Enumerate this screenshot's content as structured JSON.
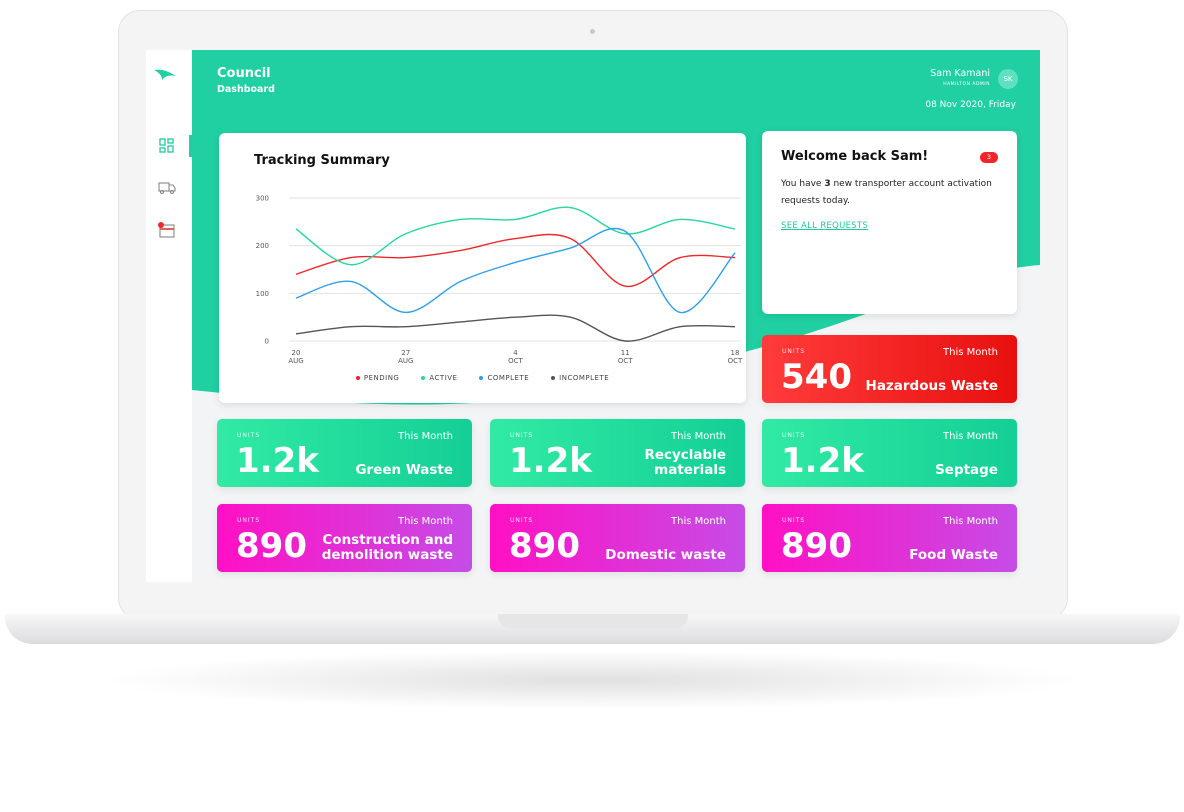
{
  "header": {
    "title": "Council",
    "subtitle": "Dashboard",
    "user_name": "Sam Kamani",
    "user_role": "HAMILTON ADMIN",
    "avatar": "SK",
    "date": "08 Nov 2020, Friday"
  },
  "chart_data": {
    "type": "line",
    "title": "Tracking Summary",
    "categories": [
      "20\nAUG",
      null,
      "27\nAUG",
      null,
      "4\nOCT",
      null,
      "11\nOCT",
      null,
      "18\nOCT"
    ],
    "series": [
      {
        "name": "PENDING",
        "color": "#f0262a",
        "values": [
          140,
          175,
          175,
          190,
          215,
          215,
          115,
          175,
          175
        ]
      },
      {
        "name": "ACTIVE",
        "color": "#27d6a0",
        "values": [
          235,
          160,
          225,
          255,
          255,
          280,
          225,
          255,
          235
        ]
      },
      {
        "name": "COMPLETE",
        "color": "#2f9fe8",
        "values": [
          90,
          125,
          60,
          125,
          165,
          195,
          230,
          60,
          185
        ]
      },
      {
        "name": "INCOMPLETE",
        "color": "#555555",
        "values": [
          15,
          30,
          30,
          40,
          50,
          50,
          0,
          30,
          30
        ]
      }
    ],
    "ylim": [
      0,
      300
    ],
    "yticks": [
      0,
      100,
      200,
      300
    ],
    "grid": true,
    "legend": "bottom"
  },
  "welcome": {
    "title": "Welcome back Sam!",
    "badge": "3",
    "message": [
      "You have ",
      "3",
      " new transporter account activation requests today."
    ],
    "link": "SEE ALL REQUESTS"
  },
  "cards": [
    {
      "units": "UNITS",
      "period": "This Month",
      "value": "540",
      "name": "Hazardous Waste"
    },
    {
      "units": "UNITS",
      "period": "This Month",
      "value": "1.2k",
      "name": "Green Waste"
    },
    {
      "units": "UNITS",
      "period": "This Month",
      "value": "1.2k",
      "name": "Recyclable\nmaterials"
    },
    {
      "units": "UNITS",
      "period": "This Month",
      "value": "1.2k",
      "name": "Septage"
    },
    {
      "units": "UNITS",
      "period": "This Month",
      "value": "890",
      "name": "Construction and\ndemolition waste"
    },
    {
      "units": "UNITS",
      "period": "This Month",
      "value": "890",
      "name": "Domestic waste"
    },
    {
      "units": "UNITS",
      "period": "This Month",
      "value": "890",
      "name": "Food Waste"
    }
  ]
}
